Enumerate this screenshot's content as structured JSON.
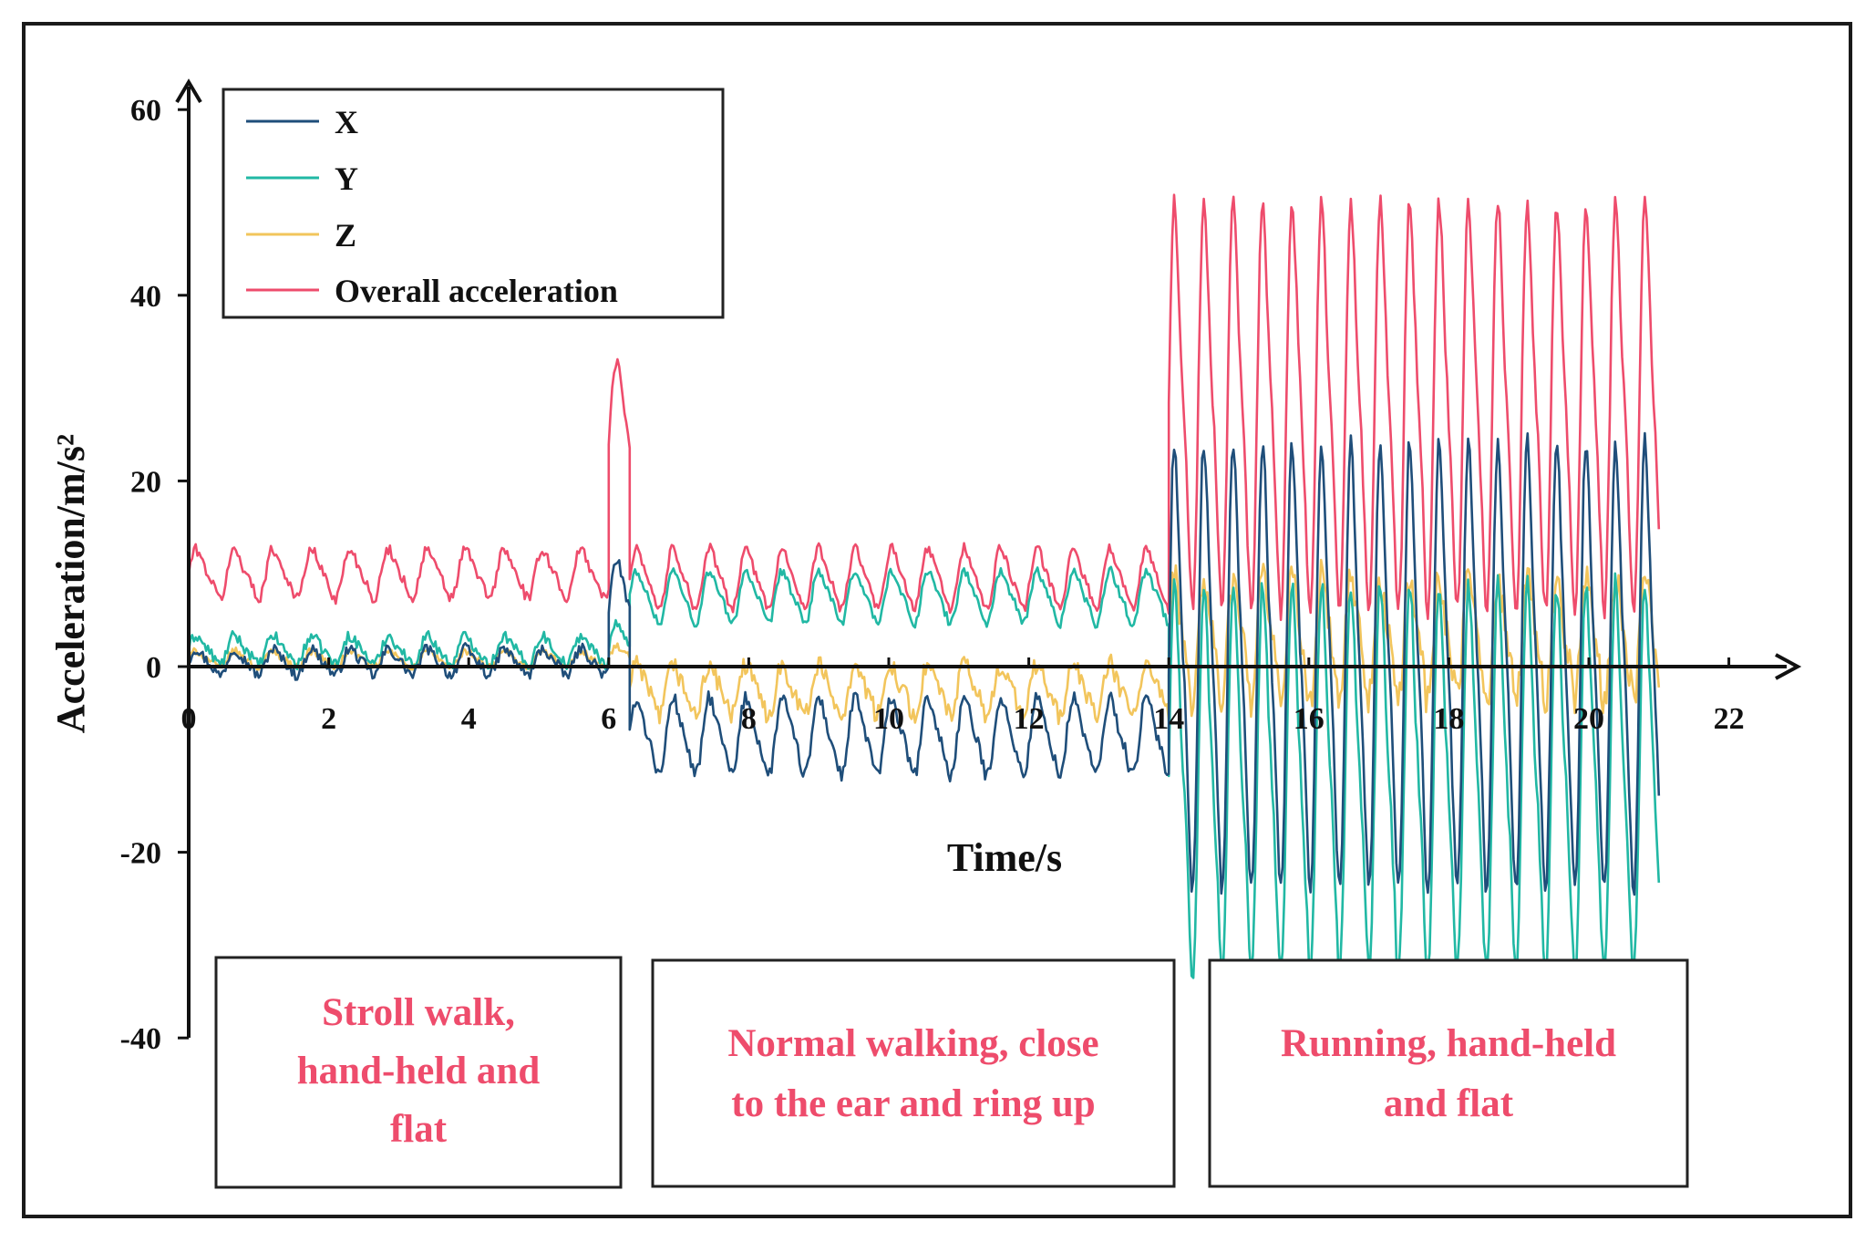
{
  "chart_data": {
    "type": "line",
    "title": "",
    "xlabel": "Time/s",
    "ylabel": "Acceleration/m/s²",
    "xlim": [
      0,
      23
    ],
    "ylim": [
      -40,
      60
    ],
    "xticks": [
      0,
      2,
      4,
      6,
      8,
      10,
      12,
      14,
      16,
      18,
      20,
      22
    ],
    "yticks": [
      60,
      40,
      20,
      0,
      -20,
      -40
    ],
    "legend": {
      "position": "top-left",
      "entries": [
        "X",
        "Y",
        "Z",
        "Overall acceleration"
      ]
    },
    "series": [
      {
        "name": "X",
        "color": "#1f4e7a",
        "segments": [
          {
            "t0": 0.0,
            "t1": 6.0,
            "base": 0.5,
            "amp": 1.3,
            "period": 0.55,
            "noise": 1.2
          },
          {
            "t0": 6.0,
            "t1": 6.3,
            "base": 6.0,
            "amp": 5.0,
            "period": 0.6,
            "noise": 1.0
          },
          {
            "t0": 6.3,
            "t1": 14.0,
            "base": -7.5,
            "amp": 3.8,
            "period": 0.52,
            "noise": 1.5
          },
          {
            "t0": 14.0,
            "t1": 21.0,
            "base": 0.0,
            "amp": 22.0,
            "period": 0.42,
            "noise": 2.0
          }
        ]
      },
      {
        "name": "Y",
        "color": "#21b8a4",
        "segments": [
          {
            "t0": 0.0,
            "t1": 6.0,
            "base": 1.8,
            "amp": 1.4,
            "period": 0.55,
            "noise": 1.2
          },
          {
            "t0": 6.0,
            "t1": 6.3,
            "base": 2.0,
            "amp": 2.5,
            "period": 0.6,
            "noise": 1.0
          },
          {
            "t0": 6.3,
            "t1": 14.0,
            "base": 7.5,
            "amp": 2.6,
            "period": 0.52,
            "noise": 1.0
          },
          {
            "t0": 14.0,
            "t1": 21.0,
            "base": -12.0,
            "amp": 19.0,
            "period": 0.42,
            "noise": 2.5
          }
        ]
      },
      {
        "name": "Z",
        "color": "#f2c55c",
        "segments": [
          {
            "t0": 0.0,
            "t1": 6.0,
            "base": 0.8,
            "amp": 0.8,
            "period": 0.55,
            "noise": 0.8
          },
          {
            "t0": 6.0,
            "t1": 6.3,
            "base": 1.0,
            "amp": 1.0,
            "period": 0.6,
            "noise": 0.8
          },
          {
            "t0": 6.3,
            "t1": 14.0,
            "base": -2.5,
            "amp": 2.5,
            "period": 0.52,
            "noise": 2.2
          },
          {
            "t0": 14.0,
            "t1": 21.0,
            "base": 3.0,
            "amp": 6.0,
            "period": 0.42,
            "noise": 4.0
          }
        ]
      },
      {
        "name": "Overall acceleration",
        "color": "#ee4c6c",
        "segments": [
          {
            "t0": 0.0,
            "t1": 6.0,
            "base": 10.0,
            "amp": 2.4,
            "period": 0.55,
            "noise": 1.2
          },
          {
            "t0": 6.0,
            "t1": 6.3,
            "base": 24.0,
            "amp": 8.0,
            "period": 0.6,
            "noise": 1.0
          },
          {
            "t0": 6.3,
            "t1": 14.0,
            "base": 9.5,
            "amp": 3.0,
            "period": 0.52,
            "noise": 1.0
          },
          {
            "t0": 14.0,
            "t1": 21.0,
            "base": 28.0,
            "amp": 20.0,
            "period": 0.42,
            "noise": 2.0
          }
        ]
      }
    ],
    "annotations": [
      {
        "lines": [
          "Stroll walk,",
          "hand-held and",
          "flat"
        ]
      },
      {
        "lines": [
          "Normal walking, close",
          "to the ear and ring up"
        ]
      },
      {
        "lines": [
          "Running, hand-held",
          "and flat"
        ]
      }
    ]
  }
}
